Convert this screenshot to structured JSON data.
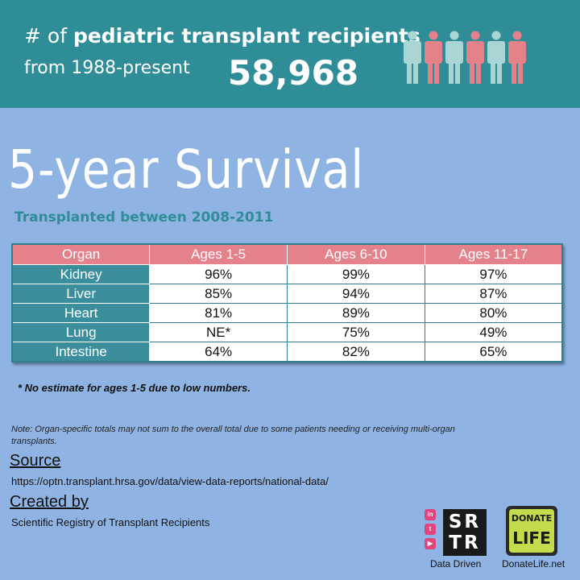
{
  "header": {
    "prefix": "# of ",
    "bold_text": "pediatric transplant recipients",
    "line2": "from 1988-present",
    "count": "58,968",
    "people_icon_colors": [
      "#a9d6d4",
      "#e5818b",
      "#a9d6d4",
      "#e5818b",
      "#a9d6d4",
      "#e5818b"
    ]
  },
  "title": "5-year Survival",
  "subtitle": "Transplanted between 2008-2011",
  "table": {
    "headers": [
      "Organ",
      "Ages 1-5",
      "Ages 6-10",
      "Ages 11-17"
    ],
    "rows": [
      [
        "Kidney",
        "96%",
        "99%",
        "97%"
      ],
      [
        "Liver",
        "85%",
        "94%",
        "87%"
      ],
      [
        "Heart",
        "81%",
        "89%",
        "80%"
      ],
      [
        "Lung",
        "NE*",
        "75%",
        "49%"
      ],
      [
        "Intestine",
        "64%",
        "82%",
        "65%"
      ]
    ]
  },
  "footnote": "* No estimate for ages 1-5 due to low numbers.",
  "note": "Note: Organ-specific totals may not sum to the overall total due to some patients needing or receiving multi-organ transplants.",
  "source": {
    "heading": "Source",
    "url": "https://optn.transplant.hrsa.gov/data/view-data-reports/national-data/"
  },
  "created_by": {
    "heading": "Created by",
    "text": "Scientific Registry of Transplant Recipients"
  },
  "logos": {
    "social_icons": [
      "linkedin-icon",
      "twitter-icon",
      "youtube-icon"
    ],
    "social_letters": [
      "in",
      "t",
      "▶"
    ],
    "srtr_line1": "SR",
    "srtr_line2": "TR",
    "srtr_caption": "Data Driven",
    "donate_top": "DONATE",
    "donate_bottom": "LIFE",
    "donate_caption": "DonateLife.net"
  }
}
